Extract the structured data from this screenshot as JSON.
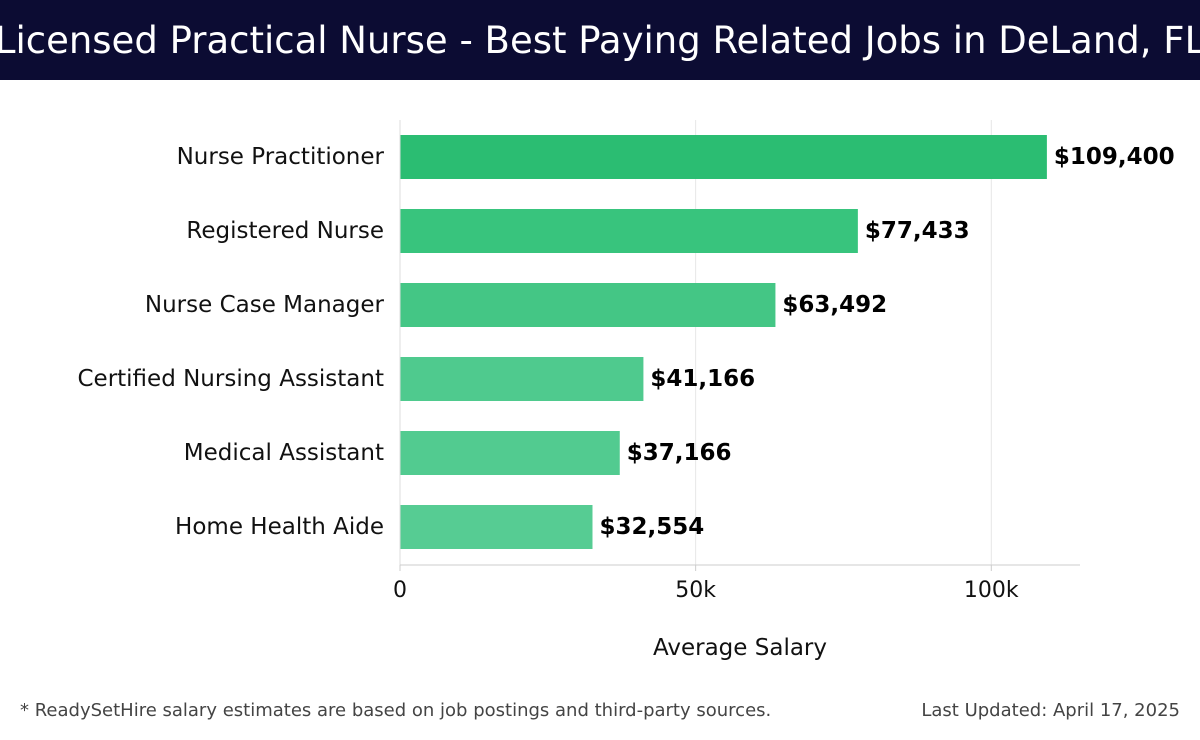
{
  "header": {
    "title": "Licensed Practical Nurse - Best Paying Related Jobs in DeLand, FL"
  },
  "chart_data": {
    "type": "bar",
    "orientation": "horizontal",
    "title": "Licensed Practical Nurse - Best Paying Related Jobs in DeLand, FL",
    "categories": [
      "Nurse Practitioner",
      "Registered Nurse",
      "Nurse Case Manager",
      "Certified Nursing Assistant",
      "Medical Assistant",
      "Home Health Aide"
    ],
    "values": [
      109400,
      77433,
      63492,
      41166,
      37166,
      32554
    ],
    "value_labels": [
      "$109,400",
      "$77,433",
      "$63,492",
      "$41,166",
      "$37,166",
      "$32,554"
    ],
    "bar_colors": [
      "#2bbd72",
      "#38c47d",
      "#44c685",
      "#4fca8e",
      "#52cb90",
      "#56cc93"
    ],
    "xlabel": "Average Salary",
    "ylabel": "",
    "xlim": [
      0,
      115000
    ],
    "xticks": [
      0,
      50000,
      100000
    ],
    "xtick_labels": [
      "0",
      "50k",
      "100k"
    ],
    "grid": true
  },
  "footer": {
    "note": "* ReadySetHire salary estimates are based on job postings and third-party sources.",
    "updated": "Last Updated: April 17, 2025"
  },
  "colors": {
    "title_bg": "#0c0c33",
    "title_text": "#ffffff",
    "grid": "#e6e6e6"
  }
}
